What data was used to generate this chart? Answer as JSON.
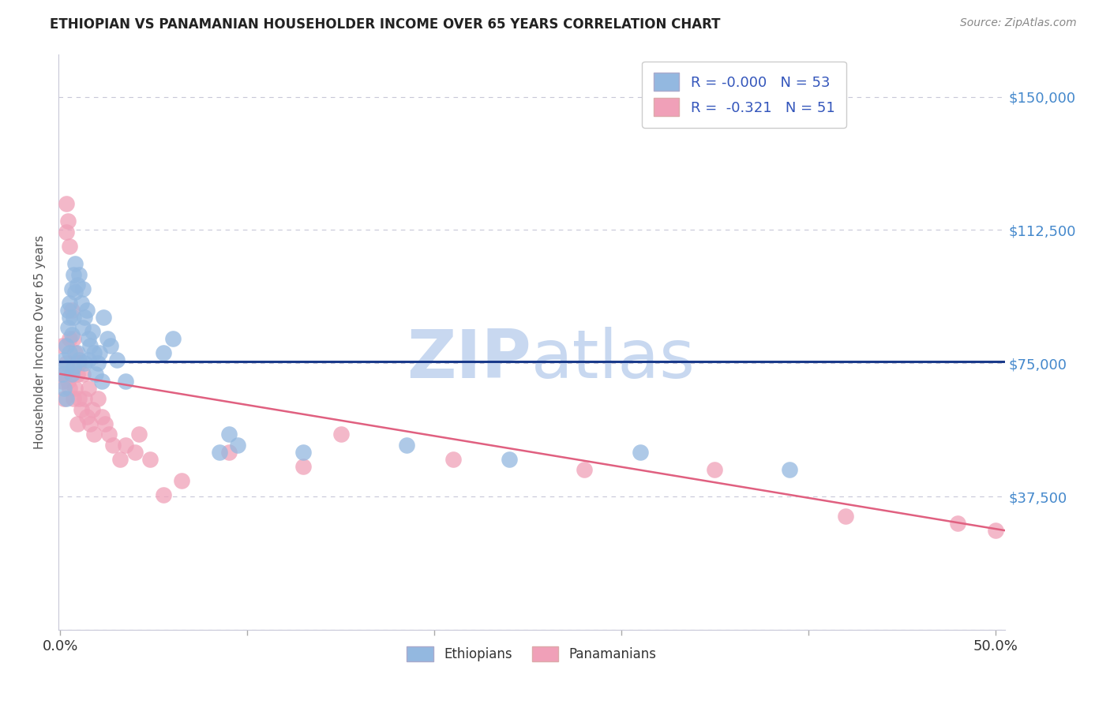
{
  "title": "ETHIOPIAN VS PANAMANIAN HOUSEHOLDER INCOME OVER 65 YEARS CORRELATION CHART",
  "source": "Source: ZipAtlas.com",
  "ylabel": "Householder Income Over 65 years",
  "yticks": [
    0,
    37500,
    75000,
    112500,
    150000
  ],
  "ytick_labels": [
    "",
    "$37,500",
    "$75,000",
    "$112,500",
    "$150,000"
  ],
  "ylim": [
    0,
    162000
  ],
  "xlim": [
    -0.001,
    0.505
  ],
  "legend_r_blue": "R = -0.000",
  "legend_n_blue": "N = 53",
  "legend_r_pink": "R =  -0.321",
  "legend_n_pink": "N = 51",
  "blue_color": "#93b8e0",
  "pink_color": "#f0a0b8",
  "blue_line_color": "#1a3a8a",
  "pink_line_color": "#e06080",
  "watermark_zip": "ZIP",
  "watermark_atlas": "atlas",
  "watermark_color": "#c8d8f0",
  "background_color": "#ffffff",
  "grid_color": "#c8c8d8",
  "title_color": "#222222",
  "axis_label_color": "#555555",
  "tick_label_color_right": "#4488cc",
  "legend_text_color": "#3355bb",
  "blue_scatter_x": [
    0.001,
    0.002,
    0.002,
    0.003,
    0.003,
    0.003,
    0.004,
    0.004,
    0.005,
    0.005,
    0.005,
    0.006,
    0.006,
    0.006,
    0.007,
    0.007,
    0.007,
    0.008,
    0.008,
    0.009,
    0.009,
    0.01,
    0.01,
    0.011,
    0.012,
    0.012,
    0.013,
    0.013,
    0.014,
    0.015,
    0.015,
    0.016,
    0.017,
    0.018,
    0.019,
    0.02,
    0.021,
    0.022,
    0.023,
    0.025,
    0.027,
    0.03,
    0.035,
    0.055,
    0.06,
    0.085,
    0.09,
    0.095,
    0.13,
    0.185,
    0.24,
    0.31,
    0.39
  ],
  "blue_scatter_y": [
    72000,
    68000,
    76000,
    80000,
    74000,
    65000,
    85000,
    90000,
    92000,
    78000,
    88000,
    96000,
    83000,
    72000,
    100000,
    88000,
    74000,
    103000,
    95000,
    97000,
    78000,
    100000,
    76000,
    92000,
    96000,
    85000,
    88000,
    75000,
    90000,
    82000,
    76000,
    80000,
    84000,
    78000,
    72000,
    75000,
    78000,
    70000,
    88000,
    82000,
    80000,
    76000,
    70000,
    78000,
    82000,
    50000,
    55000,
    52000,
    50000,
    52000,
    48000,
    50000,
    45000
  ],
  "pink_scatter_x": [
    0.001,
    0.001,
    0.002,
    0.002,
    0.003,
    0.003,
    0.003,
    0.004,
    0.004,
    0.005,
    0.005,
    0.005,
    0.006,
    0.006,
    0.007,
    0.007,
    0.008,
    0.008,
    0.009,
    0.009,
    0.01,
    0.01,
    0.011,
    0.012,
    0.013,
    0.014,
    0.015,
    0.016,
    0.017,
    0.018,
    0.02,
    0.022,
    0.024,
    0.026,
    0.028,
    0.032,
    0.035,
    0.04,
    0.042,
    0.048,
    0.055,
    0.065,
    0.09,
    0.13,
    0.15,
    0.21,
    0.28,
    0.35,
    0.42,
    0.48,
    0.5
  ],
  "pink_scatter_y": [
    80000,
    70000,
    72000,
    65000,
    120000,
    112000,
    75000,
    115000,
    70000,
    108000,
    82000,
    68000,
    90000,
    72000,
    82000,
    65000,
    78000,
    68000,
    72000,
    58000,
    75000,
    65000,
    62000,
    72000,
    65000,
    60000,
    68000,
    58000,
    62000,
    55000,
    65000,
    60000,
    58000,
    55000,
    52000,
    48000,
    52000,
    50000,
    55000,
    48000,
    38000,
    42000,
    50000,
    46000,
    55000,
    48000,
    45000,
    45000,
    32000,
    30000,
    28000
  ],
  "blue_trend_x": [
    0.0,
    0.505
  ],
  "blue_trend_y": [
    75500,
    75500
  ],
  "pink_trend_x": [
    0.0,
    0.505
  ],
  "pink_trend_y": [
    72000,
    28000
  ],
  "xtick_positions": [
    0.0,
    0.1,
    0.2,
    0.3,
    0.4,
    0.5
  ],
  "xtick_labels": [
    "0.0%",
    "",
    "",
    "",
    "",
    "50.0%"
  ]
}
